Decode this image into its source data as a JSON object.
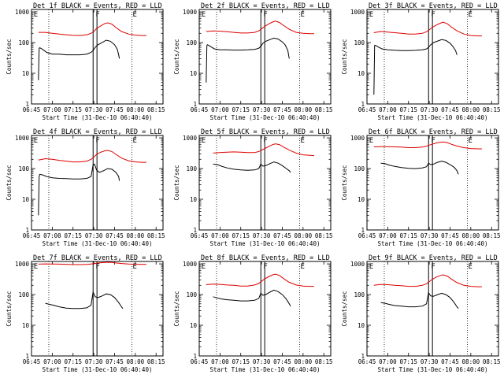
{
  "colors": {
    "events": "#000000",
    "lld": "#dd0000",
    "axis": "#000000",
    "background": "#ffffff"
  },
  "x_tick_labels": [
    "06:45",
    "07:00",
    "07:15",
    "07:30",
    "07:45",
    "08:00",
    "08:15"
  ],
  "x_tick_minutes": [
    405,
    420,
    435,
    450,
    465,
    480,
    495
  ],
  "x_range_minutes": [
    405,
    500
  ],
  "y_tick_labels": [
    "1",
    "10",
    "100",
    "1000"
  ],
  "y_tick_values": [
    1,
    10,
    100,
    1000
  ],
  "y_range": [
    1,
    1200
  ],
  "y_scale": "log",
  "ylabel": "Counts/sec",
  "xlabel": "Start Time (31-Dec-10 06:40:40)",
  "marker_letters": [
    "E",
    "F",
    "E"
  ],
  "marker_minutes": [
    406,
    450.7,
    477.5
  ],
  "dotted_line_minutes": [
    417.5,
    477.5
  ],
  "solid_line_minutes": [
    449.5,
    452.3
  ],
  "chart_data": [
    {
      "type": "line",
      "title": "Det 1f BLACK = Events, RED = LLD",
      "series": [
        {
          "name": "BLACK = Events",
          "color": "#000000",
          "x": [
            410,
            410.5,
            411,
            413,
            416,
            420,
            425,
            430,
            435,
            440,
            445,
            448,
            449.5,
            451,
            453,
            456,
            459,
            462,
            465,
            467,
            468,
            468.5
          ],
          "y": [
            6,
            65,
            68,
            60,
            48,
            42,
            42,
            40,
            40,
            40,
            42,
            48,
            55,
            70,
            85,
            100,
            120,
            110,
            85,
            60,
            40,
            30
          ]
        },
        {
          "name": "RED = LLD",
          "color": "#dd0000",
          "x": [
            410,
            415,
            420,
            425,
            430,
            435,
            440,
            445,
            448,
            450,
            452,
            455,
            458,
            460,
            463,
            466,
            470,
            475,
            480,
            485,
            488
          ],
          "y": [
            215,
            215,
            200,
            190,
            180,
            172,
            170,
            180,
            200,
            230,
            285,
            350,
            420,
            440,
            400,
            310,
            230,
            190,
            175,
            170,
            170
          ]
        }
      ]
    },
    {
      "type": "line",
      "title": "Det 2f BLACK = Events, RED = LLD",
      "series": [
        {
          "name": "BLACK = Events",
          "color": "#000000",
          "x": [
            410,
            410.5,
            411,
            413,
            416,
            420,
            425,
            430,
            435,
            440,
            445,
            448,
            449.5,
            451,
            453,
            456,
            459,
            462,
            465,
            467,
            469,
            470
          ],
          "y": [
            5,
            80,
            85,
            75,
            62,
            58,
            58,
            57,
            57,
            58,
            60,
            65,
            75,
            95,
            110,
            125,
            140,
            130,
            105,
            85,
            55,
            30
          ]
        },
        {
          "name": "RED = LLD",
          "color": "#dd0000",
          "x": [
            410,
            415,
            420,
            425,
            430,
            435,
            440,
            445,
            448,
            450,
            452,
            455,
            458,
            460,
            463,
            466,
            470,
            475,
            480,
            485,
            488
          ],
          "y": [
            230,
            240,
            235,
            225,
            215,
            205,
            205,
            215,
            240,
            280,
            330,
            400,
            470,
            500,
            450,
            360,
            270,
            215,
            200,
            195,
            195
          ]
        }
      ]
    },
    {
      "type": "line",
      "title": "Det 3f BLACK = Events, RED = LLD",
      "series": [
        {
          "name": "BLACK = Events",
          "color": "#000000",
          "x": [
            410,
            410.5,
            411,
            413,
            416,
            420,
            425,
            430,
            435,
            440,
            445,
            448,
            449.5,
            451,
            453,
            456,
            459,
            462,
            465,
            467,
            469,
            470
          ],
          "y": [
            2,
            80,
            82,
            72,
            62,
            58,
            56,
            55,
            55,
            56,
            58,
            62,
            70,
            85,
            100,
            112,
            125,
            118,
            95,
            75,
            55,
            40
          ]
        },
        {
          "name": "RED = LLD",
          "color": "#dd0000",
          "x": [
            410,
            415,
            420,
            425,
            430,
            435,
            440,
            445,
            448,
            450,
            452,
            455,
            458,
            460,
            463,
            466,
            470,
            475,
            480,
            485,
            488
          ],
          "y": [
            210,
            230,
            220,
            210,
            200,
            190,
            190,
            200,
            225,
            260,
            310,
            370,
            430,
            460,
            410,
            320,
            240,
            190,
            170,
            165,
            165
          ]
        }
      ]
    },
    {
      "type": "line",
      "title": "Det 4f BLACK = Events, RED = LLD",
      "series": [
        {
          "name": "BLACK = Events",
          "color": "#000000",
          "x": [
            410,
            410.5,
            411,
            413,
            416,
            420,
            425,
            430,
            435,
            440,
            445,
            448,
            449.5,
            450.5,
            452,
            454,
            457,
            460,
            463,
            466,
            468,
            468.5
          ],
          "y": [
            3,
            55,
            65,
            62,
            55,
            50,
            48,
            47,
            46,
            46,
            48,
            55,
            130,
            140,
            90,
            75,
            85,
            100,
            95,
            75,
            55,
            40
          ]
        },
        {
          "name": "RED = LLD",
          "color": "#dd0000",
          "x": [
            410,
            415,
            420,
            425,
            430,
            435,
            440,
            445,
            448,
            450,
            452,
            455,
            458,
            460,
            463,
            466,
            470,
            475,
            480,
            485,
            488
          ],
          "y": [
            190,
            210,
            200,
            185,
            175,
            165,
            165,
            175,
            200,
            235,
            290,
            340,
            380,
            390,
            360,
            290,
            220,
            180,
            165,
            160,
            160
          ]
        }
      ]
    },
    {
      "type": "line",
      "title": "Det 5f BLACK = Events, RED = LLD",
      "series": [
        {
          "name": "BLACK = Events",
          "color": "#000000",
          "x": [
            415,
            418,
            421,
            425,
            430,
            435,
            440,
            445,
            448,
            449.5,
            451,
            453,
            456,
            459,
            462,
            465,
            468,
            470,
            471
          ],
          "y": [
            140,
            135,
            120,
            105,
            95,
            90,
            88,
            90,
            100,
            140,
            120,
            125,
            145,
            165,
            150,
            125,
            100,
            85,
            75
          ]
        },
        {
          "name": "RED = LLD",
          "color": "#dd0000",
          "x": [
            415,
            420,
            425,
            430,
            435,
            440,
            445,
            448,
            450,
            452,
            455,
            458,
            460,
            463,
            466,
            470,
            475,
            480,
            485,
            488
          ],
          "y": [
            320,
            330,
            340,
            350,
            340,
            330,
            330,
            360,
            400,
            440,
            520,
            600,
            640,
            600,
            500,
            400,
            320,
            280,
            270,
            265
          ]
        }
      ]
    },
    {
      "type": "line",
      "title": "Det 6f BLACK = Events, RED = LLD",
      "series": [
        {
          "name": "BLACK = Events",
          "color": "#000000",
          "x": [
            415,
            418,
            421,
            425,
            430,
            435,
            440,
            445,
            448,
            449.5,
            451,
            453,
            456,
            459,
            462,
            465,
            468,
            470,
            471
          ],
          "y": [
            150,
            145,
            130,
            118,
            108,
            102,
            100,
            105,
            115,
            150,
            135,
            140,
            160,
            175,
            160,
            135,
            110,
            85,
            65
          ]
        },
        {
          "name": "RED = LLD",
          "color": "#dd0000",
          "x": [
            410,
            415,
            420,
            425,
            430,
            435,
            440,
            445,
            448,
            450,
            452,
            455,
            458,
            460,
            463,
            466,
            470,
            475,
            480,
            485,
            488
          ],
          "y": [
            510,
            520,
            520,
            510,
            500,
            480,
            480,
            500,
            540,
            580,
            620,
            680,
            720,
            740,
            700,
            620,
            540,
            480,
            450,
            440,
            440
          ]
        }
      ]
    },
    {
      "type": "line",
      "title": "Det 7f BLACK = Events, RED = LLD",
      "series": [
        {
          "name": "BLACK = Events",
          "color": "#000000",
          "x": [
            415,
            418,
            421,
            425,
            430,
            435,
            440,
            445,
            448,
            449.5,
            451,
            453,
            456,
            459,
            462,
            465,
            468,
            470,
            471
          ],
          "y": [
            52,
            48,
            45,
            40,
            36,
            35,
            35,
            37,
            45,
            120,
            85,
            80,
            90,
            105,
            100,
            80,
            55,
            40,
            35
          ]
        },
        {
          "name": "RED = LLD",
          "color": "#dd0000",
          "x": [
            410,
            415,
            420,
            425,
            430,
            435,
            440,
            445,
            448,
            450,
            452,
            455,
            458,
            460,
            463,
            466,
            470,
            475,
            480,
            485,
            488
          ],
          "y": [
            980,
            1000,
            990,
            980,
            970,
            950,
            950,
            960,
            990,
            1020,
            1050,
            1090,
            1120,
            1130,
            1110,
            1070,
            1030,
            990,
            970,
            960,
            960
          ]
        }
      ]
    },
    {
      "type": "line",
      "title": "Det 8f BLACK = Events, RED = LLD",
      "series": [
        {
          "name": "BLACK = Events",
          "color": "#000000",
          "x": [
            415,
            418,
            421,
            425,
            430,
            435,
            440,
            445,
            448,
            449.5,
            451,
            453,
            456,
            459,
            462,
            465,
            468,
            470,
            471
          ],
          "y": [
            85,
            78,
            72,
            68,
            65,
            62,
            62,
            65,
            75,
            110,
            95,
            100,
            120,
            140,
            125,
            100,
            70,
            50,
            42
          ]
        },
        {
          "name": "RED = LLD",
          "color": "#dd0000",
          "x": [
            410,
            415,
            420,
            425,
            430,
            435,
            440,
            445,
            448,
            450,
            452,
            455,
            458,
            460,
            463,
            466,
            470,
            475,
            480,
            485,
            488
          ],
          "y": [
            210,
            220,
            215,
            205,
            200,
            190,
            190,
            205,
            230,
            270,
            320,
            380,
            440,
            460,
            420,
            330,
            250,
            205,
            190,
            185,
            185
          ]
        }
      ]
    },
    {
      "type": "line",
      "title": "Det 9f BLACK = Events, RED = LLD",
      "series": [
        {
          "name": "BLACK = Events",
          "color": "#000000",
          "x": [
            415,
            418,
            421,
            425,
            430,
            435,
            440,
            445,
            448,
            449.5,
            451,
            453,
            456,
            459,
            462,
            465,
            468,
            470,
            471
          ],
          "y": [
            55,
            52,
            48,
            44,
            42,
            40,
            40,
            42,
            50,
            115,
            90,
            88,
            100,
            110,
            100,
            80,
            55,
            40,
            35
          ]
        },
        {
          "name": "RED = LLD",
          "color": "#dd0000",
          "x": [
            410,
            415,
            420,
            425,
            430,
            435,
            440,
            445,
            448,
            450,
            452,
            455,
            458,
            460,
            463,
            466,
            470,
            475,
            480,
            485,
            488
          ],
          "y": [
            200,
            215,
            210,
            200,
            195,
            185,
            185,
            200,
            225,
            265,
            310,
            370,
            420,
            440,
            400,
            320,
            245,
            200,
            185,
            180,
            180
          ]
        }
      ]
    }
  ]
}
